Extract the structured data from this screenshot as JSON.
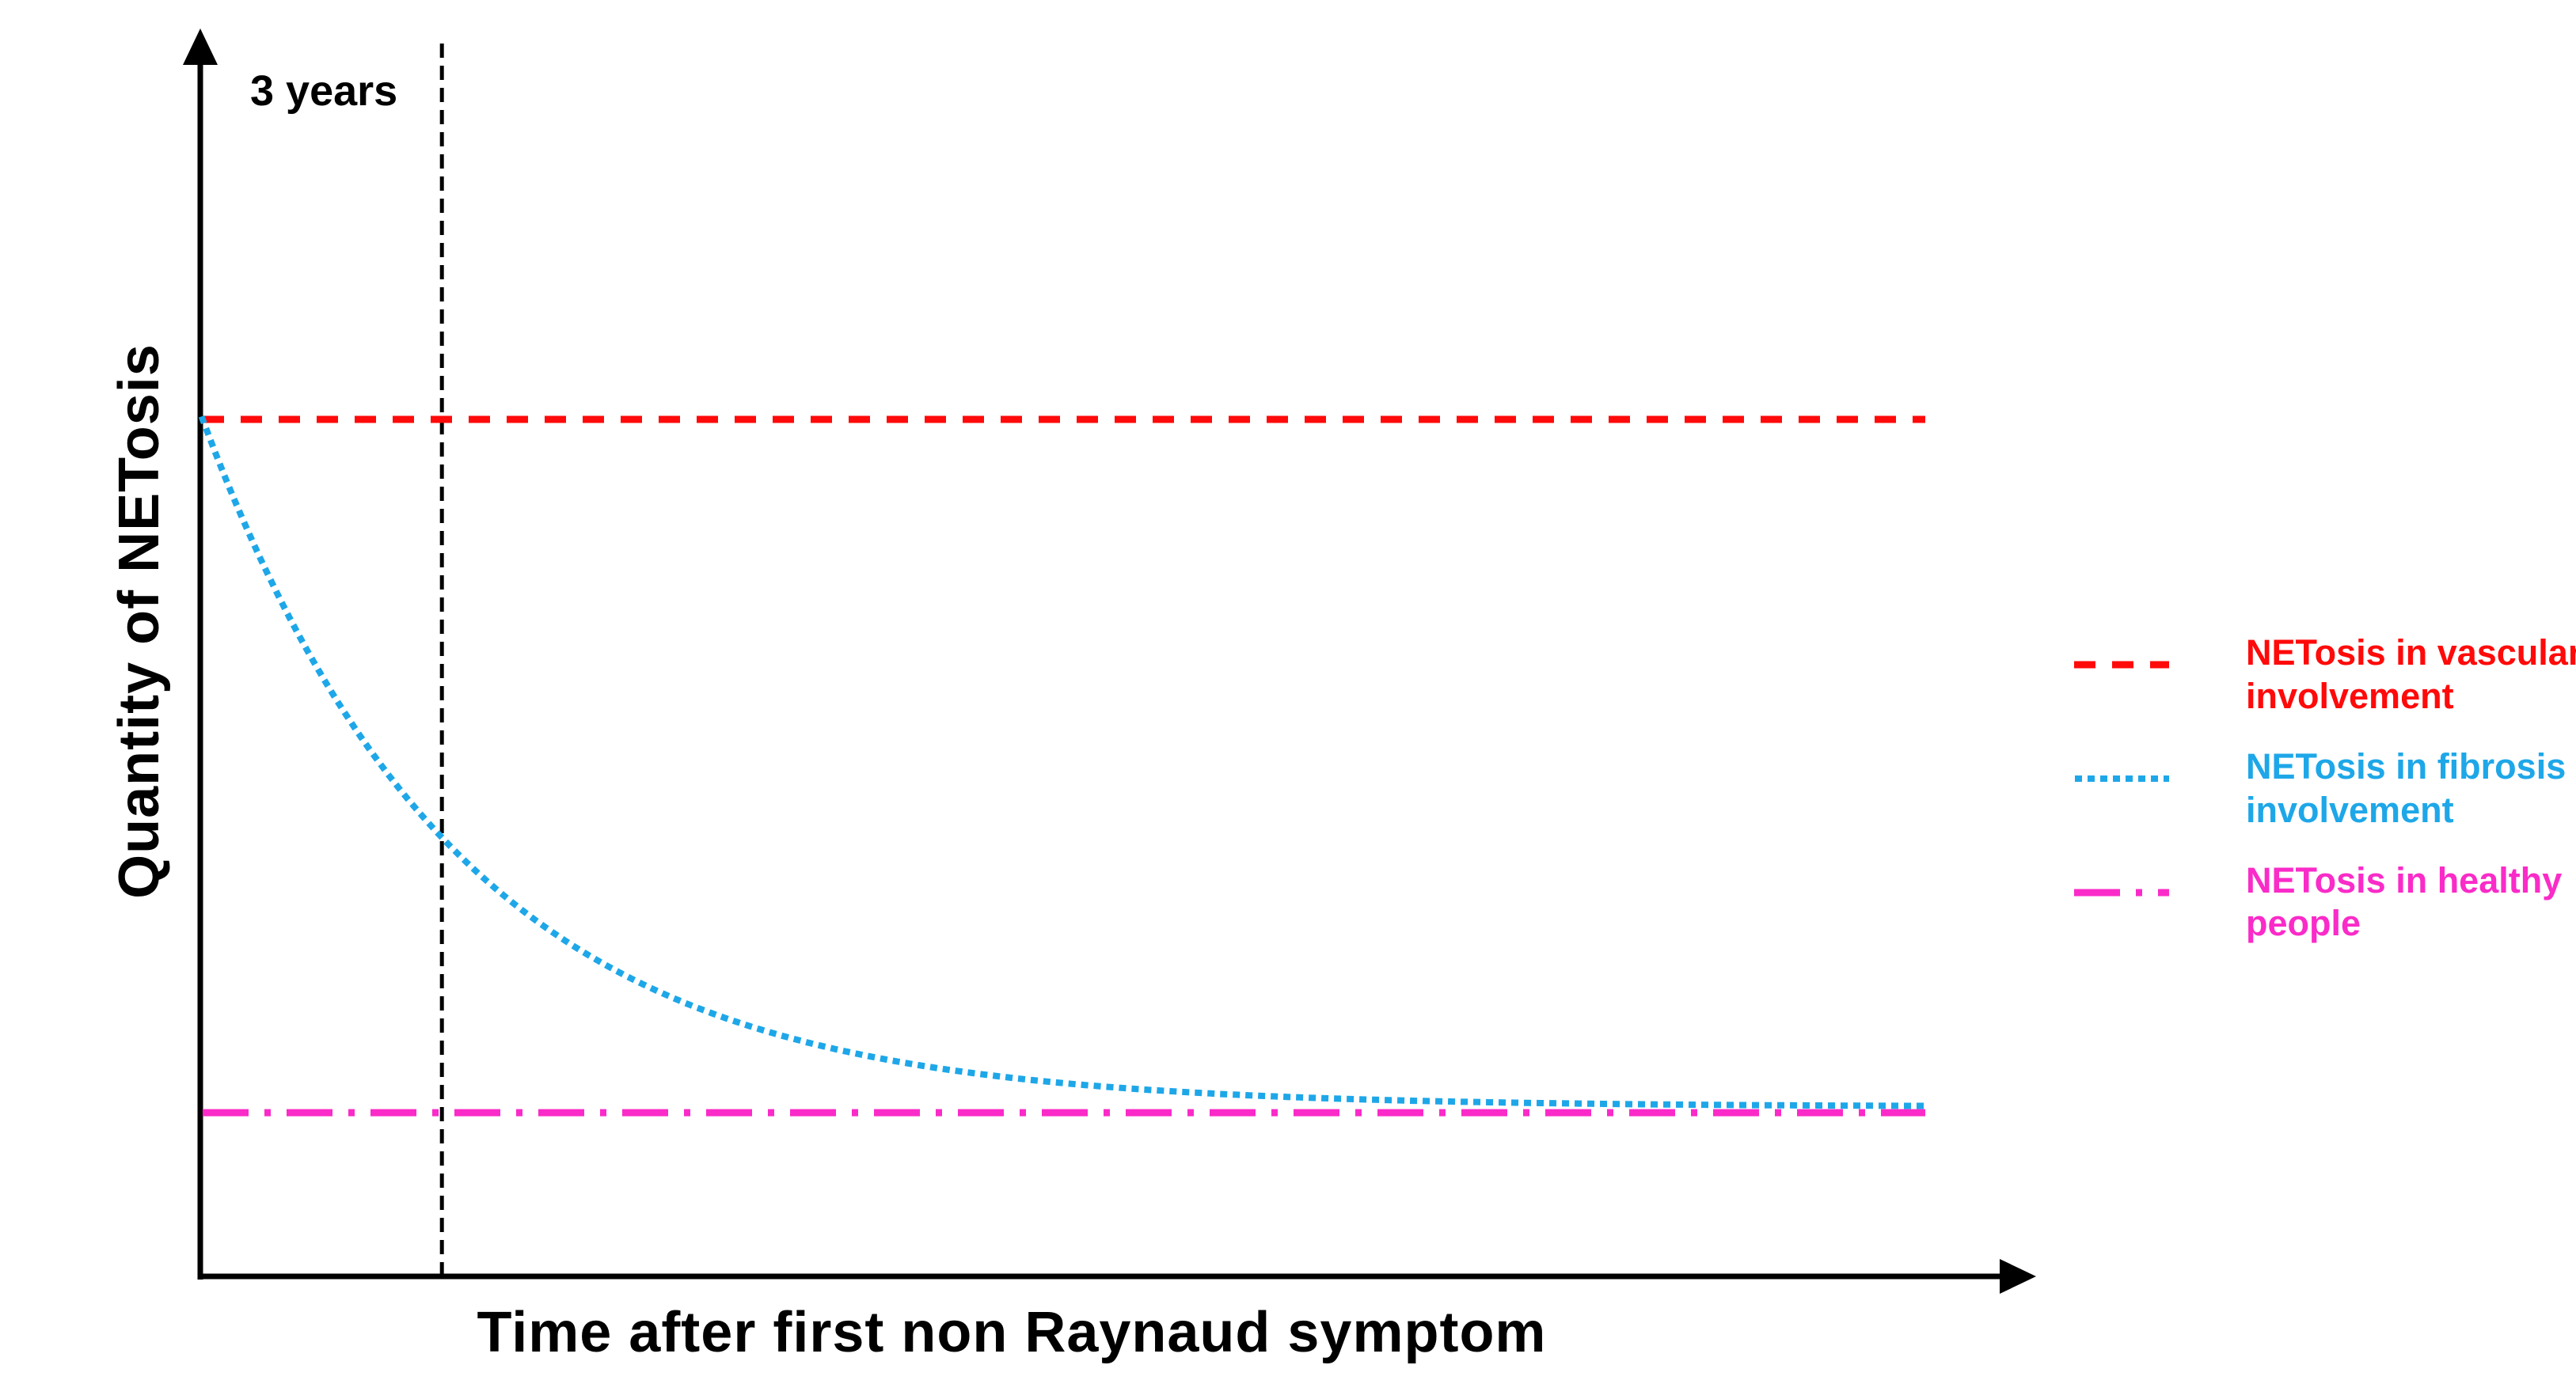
{
  "chart_data": {
    "type": "line",
    "title": "",
    "xlabel": "Time after first non Raynaud symptom",
    "ylabel": "Quantity of NETosis",
    "grid": false,
    "legend_position": "right",
    "x_axis": {
      "label": "Time after first non Raynaud symptom",
      "unit": "years",
      "range_years": [
        0,
        21.6
      ],
      "ticks": [],
      "arrow": true
    },
    "y_axis": {
      "label": "Quantity of NETosis",
      "unit": "relative quantity",
      "range": [
        0,
        1.15
      ],
      "ticks": [],
      "arrow": true
    },
    "annotation": {
      "text": "3 years",
      "x_years": 3,
      "style": "vertical-dashed-black-line"
    },
    "series": [
      {
        "name": "NETosis in vascular involvement",
        "legend_lines": [
          "NETosis in vascular",
          "involvement"
        ],
        "color": "#FF0A0A",
        "style": "dashed",
        "model": "constant",
        "value": 1.0
      },
      {
        "name": "NETosis in fibrosis involvement",
        "legend_lines": [
          "NETosis in fibrosis",
          "involvement"
        ],
        "color": "#1EA7E8",
        "style": "dotted",
        "model": "exp-decay",
        "start_value": 1.0,
        "asymptote": 0.198,
        "tau_years": 3.2,
        "points_years_value": [
          [
            0,
            1.0
          ],
          [
            1,
            0.784
          ],
          [
            2,
            0.627
          ],
          [
            3,
            0.512
          ],
          [
            4,
            0.427
          ],
          [
            5,
            0.366
          ],
          [
            6,
            0.321
          ],
          [
            8,
            0.264
          ],
          [
            10,
            0.233
          ],
          [
            12,
            0.217
          ],
          [
            15,
            0.205
          ],
          [
            18,
            0.201
          ],
          [
            21.6,
            0.199
          ]
        ]
      },
      {
        "name": "NETosis in healthy people",
        "legend_lines": [
          "NETosis in healthy",
          "people"
        ],
        "color": "#FA2BC8",
        "style": "dashdot",
        "model": "constant",
        "value": 0.191
      }
    ]
  },
  "colors": {
    "background": "#FFFFFF",
    "axis": "#000000",
    "annotation_line": "#000000",
    "vascular_red": "#FF0A0A",
    "fibrosis_blue": "#1EA7E8",
    "healthy_magenta": "#FA2BC8"
  }
}
